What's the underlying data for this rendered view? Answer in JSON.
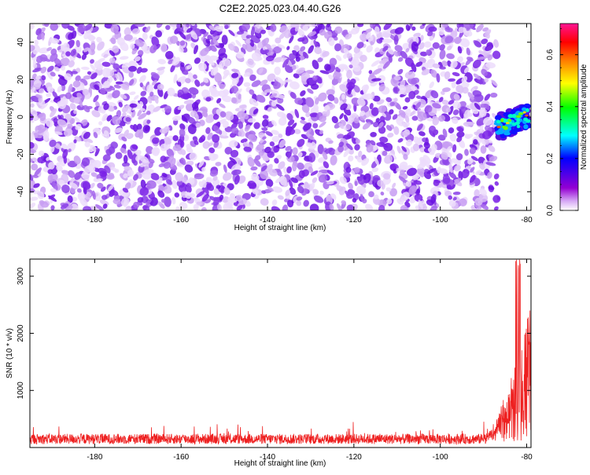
{
  "title": "C2E2.2025.023.04.40.G26",
  "chart_data": [
    {
      "type": "heatmap",
      "name": "spectrogram",
      "xlabel": "Height of straight line (km)",
      "ylabel": "Frequency (Hz)",
      "xlim": [
        -195,
        -79
      ],
      "ylim": [
        -50,
        50
      ],
      "x_ticks": [
        -180,
        -160,
        -140,
        -120,
        -100,
        -80
      ],
      "x_tick_labels": [
        "-180",
        "-160",
        "-140",
        "-120",
        "-100",
        "-80"
      ],
      "y_ticks": [
        -40,
        -20,
        0,
        20,
        40
      ],
      "y_tick_labels": [
        "-40",
        "-20",
        "0",
        "20",
        "40"
      ],
      "noise_region_x": [
        -195,
        -88
      ],
      "signal_region": {
        "x": [
          -88,
          -80
        ],
        "y": [
          -10,
          5
        ],
        "peak_amplitude": 0.62
      },
      "background_amplitude_range": [
        0.0,
        0.12
      ],
      "colorbar": {
        "label": "Normalized spectral amplitude",
        "range": [
          0,
          0.72
        ],
        "ticks": [
          0.0,
          0.2,
          0.4,
          0.6
        ],
        "tick_labels": [
          "0.0",
          "0.2",
          "0.4",
          "0.6"
        ],
        "colors": [
          "#ffffff",
          "#9400d3",
          "#0000ff",
          "#00ffff",
          "#00ff00",
          "#ffff00",
          "#ff7f00",
          "#ff0000",
          "#ff1493"
        ]
      }
    },
    {
      "type": "line",
      "name": "snr",
      "xlabel": "Height of straight line (km)",
      "ylabel": "SNR (10 * v/v)",
      "xlim": [
        -195,
        -79
      ],
      "ylim": [
        0,
        3300
      ],
      "x_ticks": [
        -180,
        -160,
        -140,
        -120,
        -100,
        -80
      ],
      "x_tick_labels": [
        "-180",
        "-160",
        "-140",
        "-120",
        "-100",
        "-80"
      ],
      "y_ticks": [
        1000,
        2000,
        3000
      ],
      "y_tick_labels": [
        "1000",
        "2000",
        "3000"
      ],
      "baseline_snr": 150,
      "noise_range": [
        30,
        500
      ],
      "rise_start_km": -90,
      "peak_snr": 3300,
      "peak_x": -82,
      "series": [
        {
          "name": "SNR",
          "color": "#ee2020"
        }
      ]
    }
  ]
}
